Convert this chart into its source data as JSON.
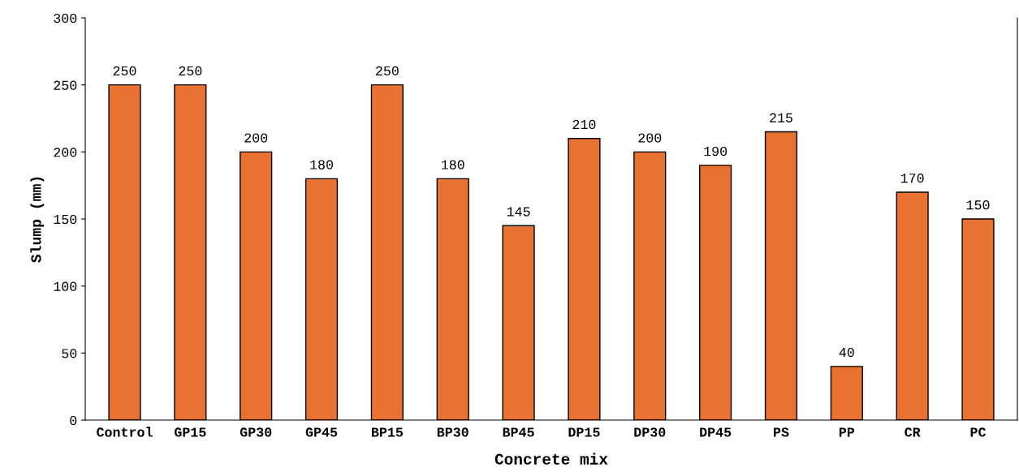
{
  "chart_data": {
    "type": "bar",
    "xlabel": "Concrete mix",
    "ylabel": "Slump (mm)",
    "categories": [
      "Control",
      "GP15",
      "GP30",
      "GP45",
      "BP15",
      "BP30",
      "BP45",
      "DP15",
      "DP30",
      "DP45",
      "PS",
      "PP",
      "CR",
      "PC"
    ],
    "values": [
      250,
      250,
      200,
      180,
      250,
      180,
      145,
      210,
      200,
      190,
      215,
      40,
      170,
      150
    ],
    "color": "#e97132",
    "ylim": [
      0,
      300
    ],
    "yticks": [
      0,
      50,
      100,
      150,
      200,
      250,
      300
    ],
    "data_labels": true,
    "grid": false
  }
}
